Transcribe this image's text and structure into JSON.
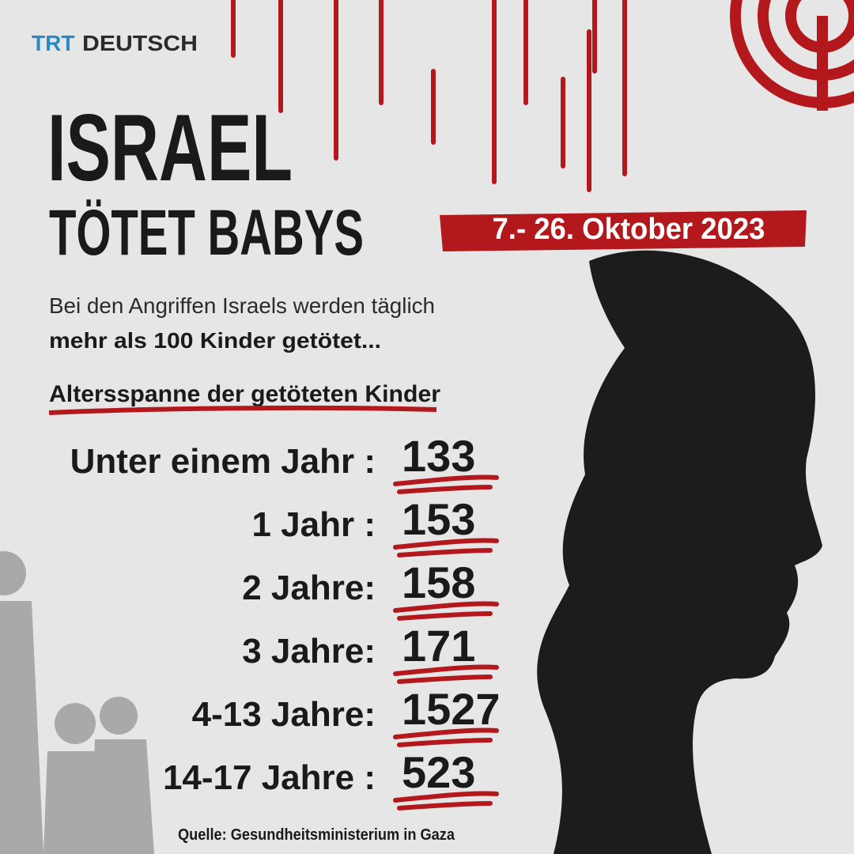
{
  "logo": {
    "trt": "TRT",
    "deutsch": "DEUTSCH"
  },
  "headline": {
    "line1": "ISRAEL",
    "line2": "TÖTET BABYS"
  },
  "date": "7.- 26. Oktober 2023",
  "intro": {
    "line1": "Bei den Angriffen Israels werden täglich",
    "line2": "mehr als 100 Kinder getötet..."
  },
  "section_title": "Altersspanne der getöteten Kinder",
  "rows": [
    {
      "label": "Unter einem Jahr :",
      "value": 133
    },
    {
      "label": "1 Jahr :",
      "value": 153
    },
    {
      "label": "2 Jahre:",
      "value": 158
    },
    {
      "label": "3 Jahre:",
      "value": 171
    },
    {
      "label": "4-13 Jahre:",
      "value": 1527
    },
    {
      "label": "14-17 Jahre :",
      "value": 523
    }
  ],
  "source": "Quelle: Gesundheitsministerium in Gaza"
}
